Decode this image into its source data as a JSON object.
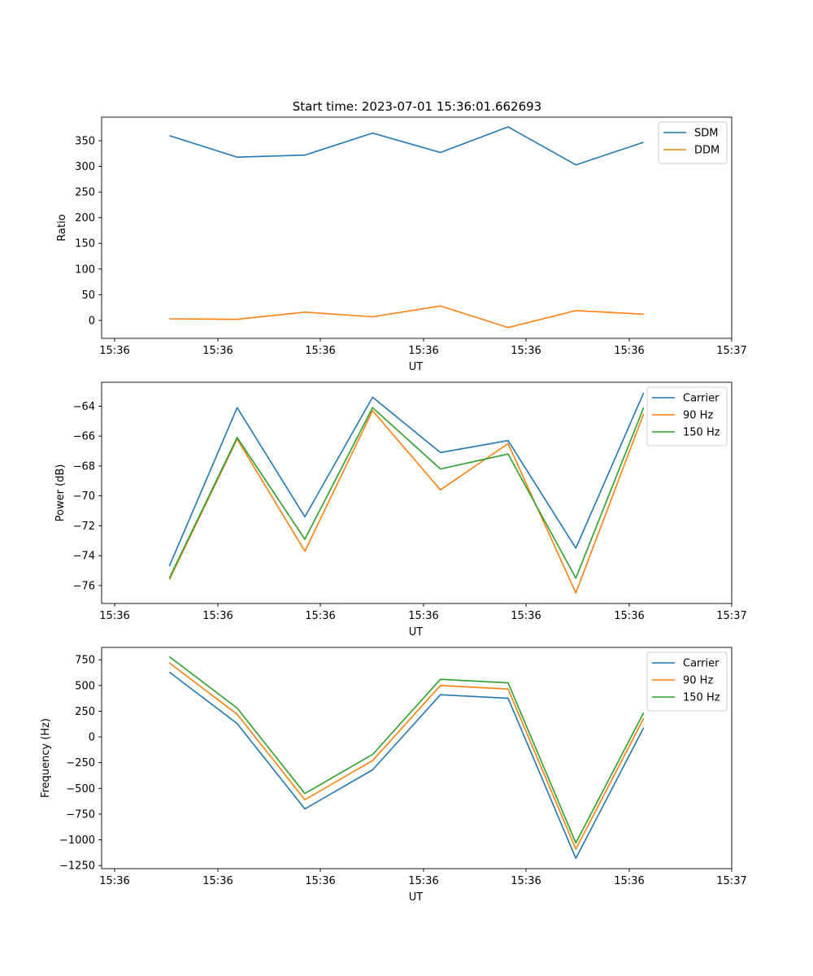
{
  "title": "Start time: 2023-07-01 15:36:01.662693",
  "colors": {
    "blue": "#1f77b4",
    "orange": "#ff7f0e",
    "green": "#2ca02c"
  },
  "chart_data": [
    {
      "type": "line",
      "xlabel": "UT",
      "ylabel": "Ratio",
      "x_tick_labels": [
        "15:36",
        "15:36",
        "15:36",
        "15:36",
        "15:36",
        "15:36",
        "15:37"
      ],
      "y_ticks": [
        0,
        50,
        100,
        150,
        200,
        250,
        300,
        350
      ],
      "y_tick_labels": [
        "0",
        "50",
        "100",
        "150",
        "200",
        "250",
        "300",
        "350"
      ],
      "ylim": [
        -35,
        396
      ],
      "x_points": [
        1,
        2,
        3,
        4,
        5,
        6,
        7,
        8
      ],
      "xlim": [
        0,
        9.3
      ],
      "legend": "top-right",
      "series": [
        {
          "name": "SDM",
          "color": "#1f77b4",
          "values": [
            360,
            318,
            322,
            365,
            327,
            377,
            303,
            347
          ]
        },
        {
          "name": "DDM",
          "color": "#ff7f0e",
          "values": [
            3,
            2,
            16,
            7,
            28,
            -14,
            19,
            12
          ]
        }
      ]
    },
    {
      "type": "line",
      "xlabel": "UT",
      "ylabel": "Power (dB)",
      "x_tick_labels": [
        "15:36",
        "15:36",
        "15:36",
        "15:36",
        "15:36",
        "15:36",
        "15:37"
      ],
      "y_ticks": [
        -76,
        -74,
        -72,
        -70,
        -68,
        -66,
        -64
      ],
      "y_tick_labels": [
        "−76",
        "−74",
        "−72",
        "−70",
        "−68",
        "−66",
        "−64"
      ],
      "ylim": [
        -77.2,
        -62.4
      ],
      "x_points": [
        1,
        2,
        3,
        4,
        5,
        6,
        7,
        8
      ],
      "xlim": [
        0,
        9.3
      ],
      "legend": "top-right",
      "series": [
        {
          "name": "Carrier",
          "color": "#1f77b4",
          "values": [
            -74.7,
            -64.1,
            -71.4,
            -63.4,
            -67.1,
            -66.3,
            -73.5,
            -63.1
          ]
        },
        {
          "name": "90 Hz",
          "color": "#ff7f0e",
          "values": [
            -75.6,
            -66.2,
            -73.7,
            -64.3,
            -69.6,
            -66.5,
            -76.5,
            -64.5
          ]
        },
        {
          "name": "150 Hz",
          "color": "#2ca02c",
          "values": [
            -75.5,
            -66.1,
            -72.9,
            -64.1,
            -68.2,
            -67.2,
            -75.5,
            -64.1
          ]
        }
      ]
    },
    {
      "type": "line",
      "xlabel": "UT",
      "ylabel": "Frequency (Hz)",
      "x_tick_labels": [
        "15:36",
        "15:36",
        "15:36",
        "15:36",
        "15:36",
        "15:36",
        "15:37"
      ],
      "y_ticks": [
        -1250,
        -1000,
        -750,
        -500,
        -250,
        0,
        250,
        500,
        750
      ],
      "y_tick_labels": [
        "−1250",
        "−1000",
        "−750",
        "−500",
        "−250",
        "0",
        "250",
        "500",
        "750"
      ],
      "ylim": [
        -1280,
        870
      ],
      "x_points": [
        1,
        2,
        3,
        4,
        5,
        6,
        7,
        8
      ],
      "xlim": [
        0,
        9.3
      ],
      "legend": "top-right",
      "series": [
        {
          "name": "Carrier",
          "color": "#1f77b4",
          "values": [
            630,
            130,
            -700,
            -320,
            410,
            375,
            -1180,
            90
          ]
        },
        {
          "name": "90 Hz",
          "color": "#ff7f0e",
          "values": [
            720,
            220,
            -610,
            -230,
            500,
            465,
            -1090,
            180
          ]
        },
        {
          "name": "150 Hz",
          "color": "#2ca02c",
          "values": [
            780,
            280,
            -550,
            -170,
            560,
            525,
            -1030,
            235
          ]
        }
      ]
    }
  ]
}
